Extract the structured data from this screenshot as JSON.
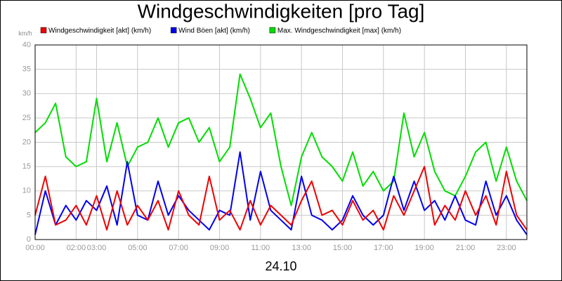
{
  "chart_data": {
    "type": "line",
    "title": "Windgeschwindigkeiten [pro Tag]",
    "y_label": "km/h",
    "x_label": "24.10",
    "x": [
      0,
      0.5,
      1,
      1.5,
      2,
      2.5,
      3,
      3.5,
      4,
      4.5,
      5,
      5.5,
      6,
      6.5,
      7,
      7.5,
      8,
      8.5,
      9,
      9.5,
      10,
      10.5,
      11,
      11.5,
      12,
      12.5,
      13,
      13.5,
      14,
      14.5,
      15,
      15.5,
      16,
      16.5,
      17,
      17.5,
      18,
      18.5,
      19,
      19.5,
      20,
      20.5,
      21,
      21.5,
      22,
      22.5,
      23,
      23.5,
      24
    ],
    "xlim": [
      0,
      24
    ],
    "xticks": [
      {
        "value": 0,
        "label": "00:00"
      },
      {
        "value": 2,
        "label": "02:00"
      },
      {
        "value": 3,
        "label": "03:00"
      },
      {
        "value": 5,
        "label": "05:00"
      },
      {
        "value": 7,
        "label": "07:00"
      },
      {
        "value": 9,
        "label": "09:00"
      },
      {
        "value": 11,
        "label": "11:00"
      },
      {
        "value": 13,
        "label": "13:00"
      },
      {
        "value": 15,
        "label": "15:00"
      },
      {
        "value": 17,
        "label": "17:00"
      },
      {
        "value": 19,
        "label": "19:00"
      },
      {
        "value": 21,
        "label": "21:00"
      },
      {
        "value": 23,
        "label": "23:00"
      }
    ],
    "ylim": [
      0,
      40
    ],
    "yticks": [
      0,
      5,
      10,
      15,
      20,
      25,
      30,
      35,
      40
    ],
    "grid": true,
    "series": [
      {
        "name": "Windgeschwindigkeit [akt] (km/h)",
        "color": "#ee0000",
        "values": [
          5,
          13,
          3,
          4,
          7,
          3,
          9,
          2,
          10,
          3,
          7,
          4,
          8,
          2,
          10,
          5,
          3,
          13,
          4,
          6,
          2,
          8,
          3,
          7,
          5,
          3,
          8,
          12,
          5,
          6,
          3,
          8,
          4,
          6,
          2,
          9,
          5,
          10,
          15,
          3,
          7,
          4,
          10,
          5,
          9,
          3,
          14,
          5,
          2
        ]
      },
      {
        "name": "Wind Böen [akt] (km/h)",
        "color": "#0000ee",
        "values": [
          1,
          10,
          3,
          7,
          4,
          8,
          6,
          11,
          3,
          16,
          5,
          4,
          12,
          5,
          9,
          6,
          4,
          2,
          6,
          5,
          18,
          4,
          14,
          6,
          4,
          2,
          13,
          5,
          4,
          2,
          4,
          9,
          5,
          3,
          5,
          13,
          6,
          12,
          6,
          8,
          4,
          9,
          4,
          3,
          12,
          5,
          9,
          4,
          1
        ]
      },
      {
        "name": "Max. Windgeschwindigkeit [max] (km/h)",
        "color": "#00dd00",
        "values": [
          22,
          24,
          28,
          17,
          15,
          16,
          29,
          16,
          24,
          15,
          19,
          20,
          25,
          19,
          24,
          25,
          20,
          23,
          16,
          19,
          34,
          29,
          23,
          26,
          15,
          7,
          17,
          22,
          17,
          15,
          12,
          18,
          11,
          14,
          10,
          12,
          26,
          17,
          22,
          14,
          10,
          9,
          13,
          18,
          20,
          12,
          19,
          12,
          8
        ]
      }
    ]
  }
}
